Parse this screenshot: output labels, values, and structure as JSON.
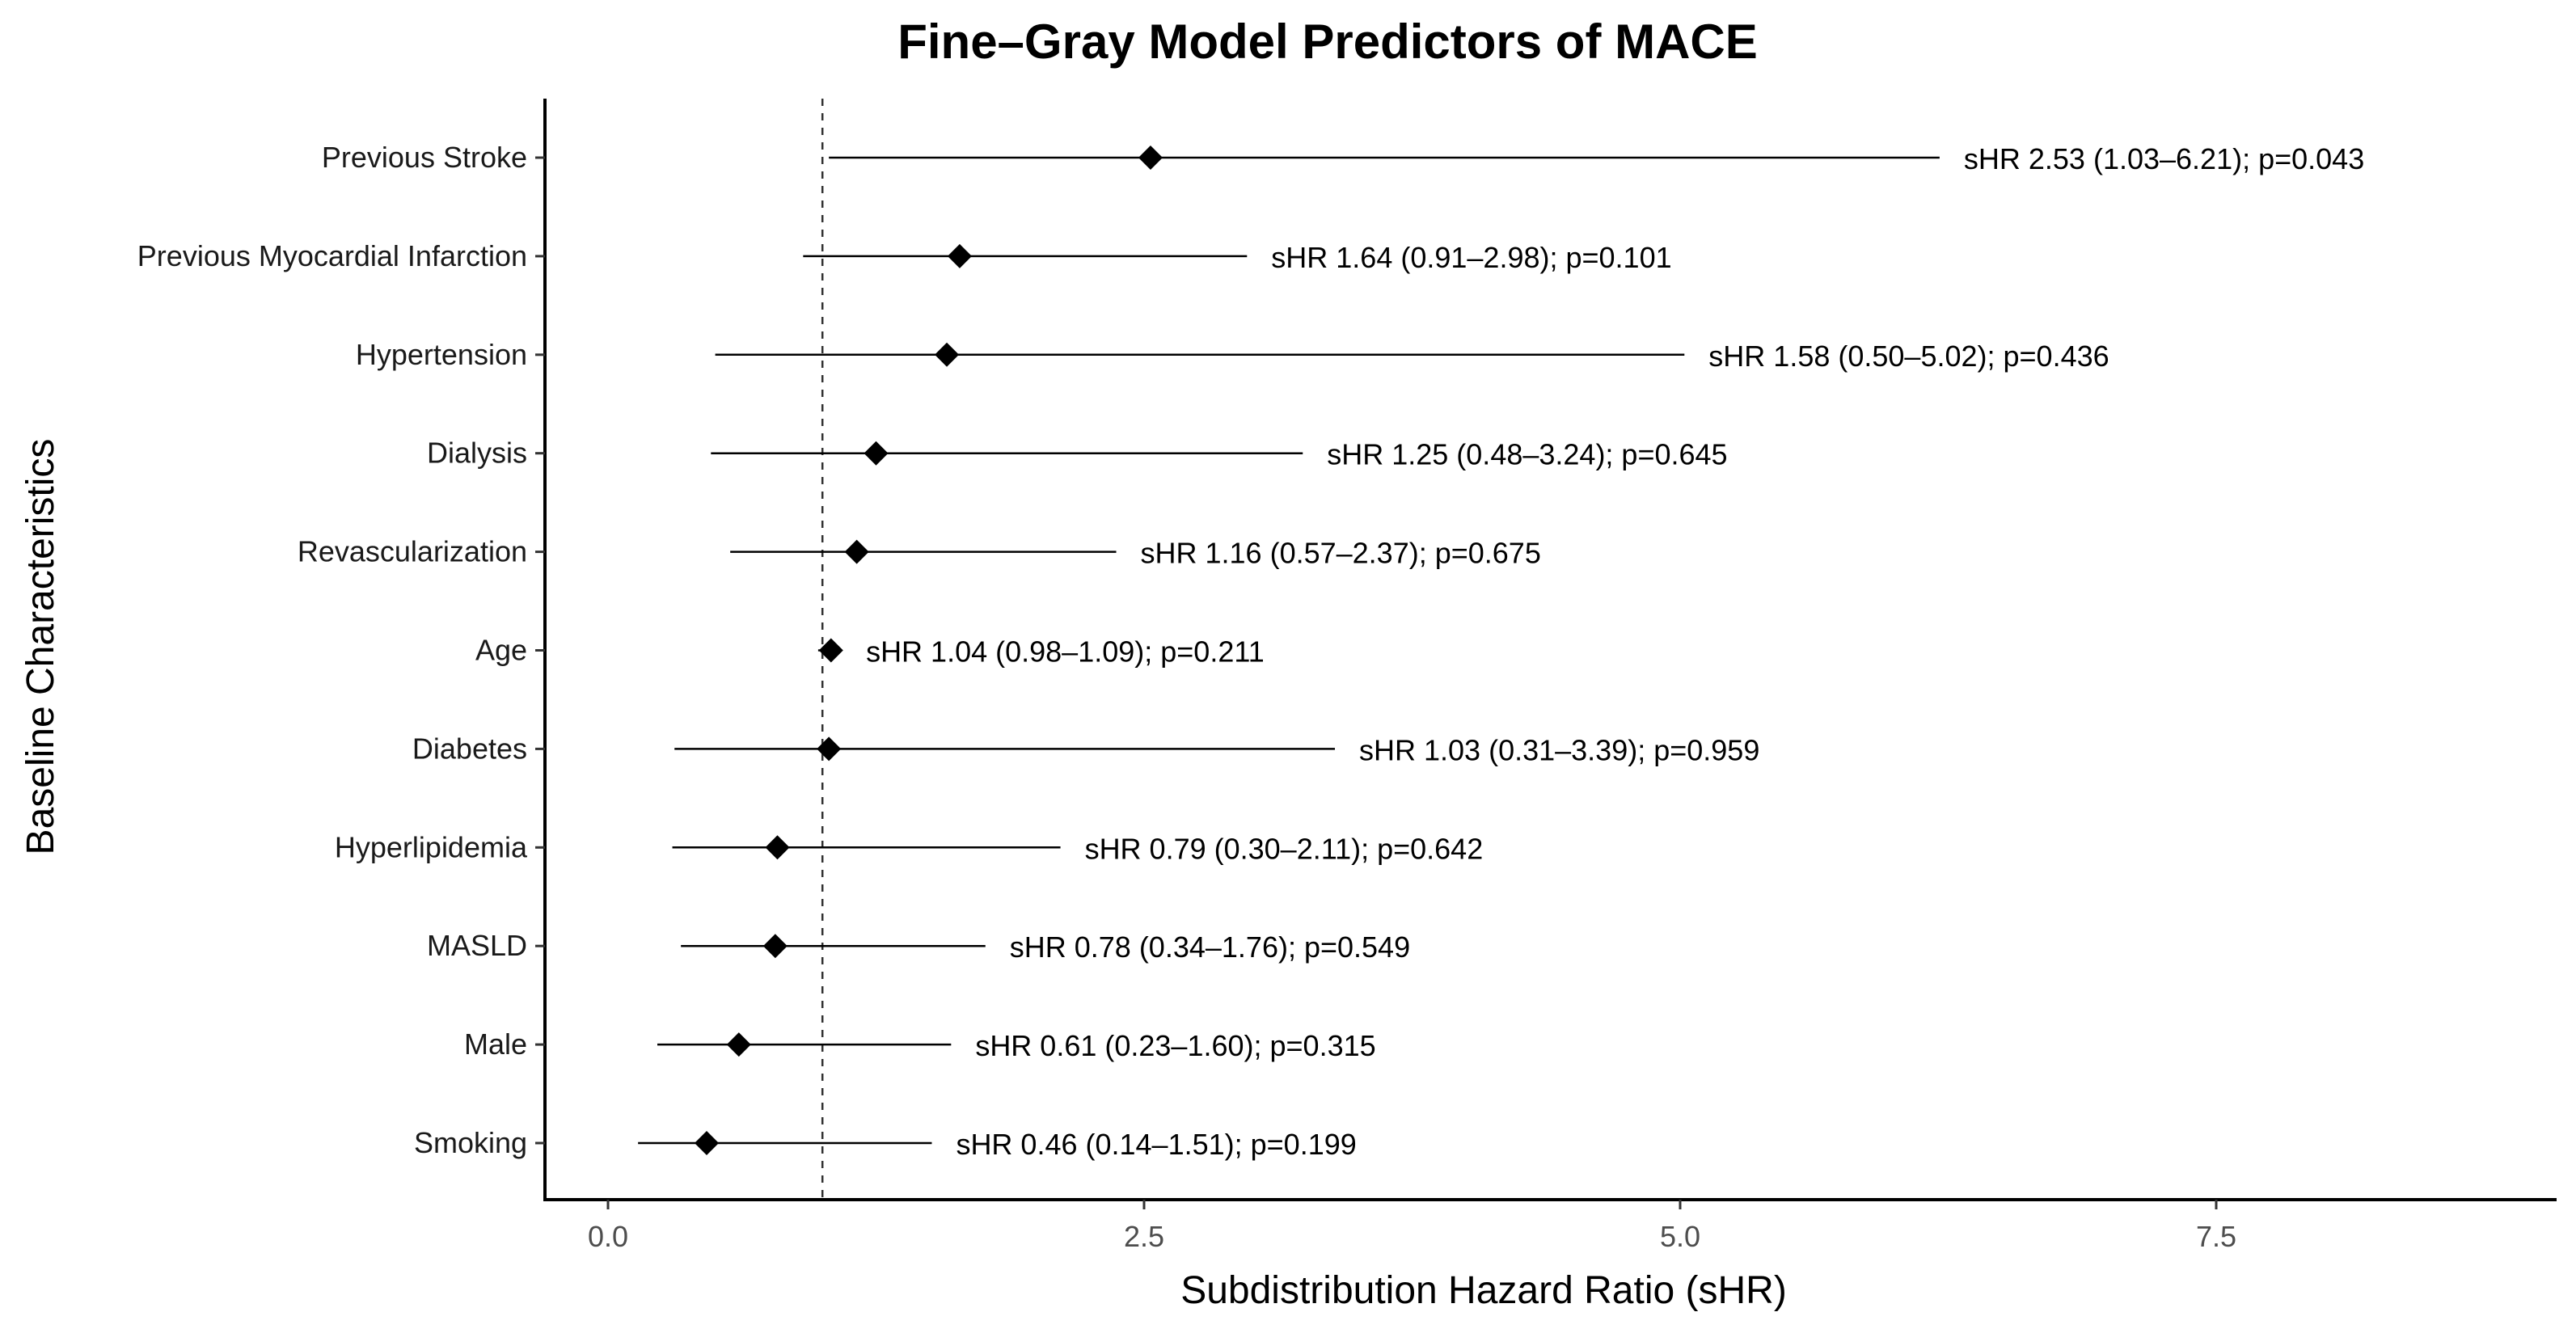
{
  "chart_data": {
    "type": "forest",
    "title": "Fine–Gray Model Predictors of MACE",
    "xlabel": "Subdistribution Hazard Ratio (sHR)",
    "ylabel": "Baseline Characteristics",
    "xlim": [
      -0.6,
      9.2
    ],
    "xticks": [
      0.0,
      2.5,
      5.0,
      7.5
    ],
    "xtick_labels": [
      "0.0",
      "2.5",
      "5.0",
      "7.5"
    ],
    "reference_line": 1.0,
    "rows": [
      {
        "name": "Previous Stroke",
        "shr": 2.53,
        "lower": 1.03,
        "upper": 6.21,
        "p": 0.043,
        "label": "sHR 2.53 (1.03–6.21); p=0.043"
      },
      {
        "name": "Previous Myocardial Infarction",
        "shr": 1.64,
        "lower": 0.91,
        "upper": 2.98,
        "p": 0.101,
        "label": "sHR 1.64 (0.91–2.98); p=0.101"
      },
      {
        "name": "Hypertension",
        "shr": 1.58,
        "lower": 0.5,
        "upper": 5.02,
        "p": 0.436,
        "label": "sHR 1.58 (0.50–5.02); p=0.436"
      },
      {
        "name": "Dialysis",
        "shr": 1.25,
        "lower": 0.48,
        "upper": 3.24,
        "p": 0.645,
        "label": "sHR 1.25 (0.48–3.24); p=0.645"
      },
      {
        "name": "Revascularization",
        "shr": 1.16,
        "lower": 0.57,
        "upper": 2.37,
        "p": 0.675,
        "label": "sHR 1.16 (0.57–2.37); p=0.675"
      },
      {
        "name": "Age",
        "shr": 1.04,
        "lower": 0.98,
        "upper": 1.09,
        "p": 0.211,
        "label": "sHR 1.04 (0.98–1.09); p=0.211"
      },
      {
        "name": "Diabetes",
        "shr": 1.03,
        "lower": 0.31,
        "upper": 3.39,
        "p": 0.959,
        "label": "sHR 1.03 (0.31–3.39); p=0.959"
      },
      {
        "name": "Hyperlipidemia",
        "shr": 0.79,
        "lower": 0.3,
        "upper": 2.11,
        "p": 0.642,
        "label": "sHR 0.79 (0.30–2.11); p=0.642"
      },
      {
        "name": "MASLD",
        "shr": 0.78,
        "lower": 0.34,
        "upper": 1.76,
        "p": 0.549,
        "label": "sHR 0.78 (0.34–1.76); p=0.549"
      },
      {
        "name": "Male",
        "shr": 0.61,
        "lower": 0.23,
        "upper": 1.6,
        "p": 0.315,
        "label": "sHR 0.61 (0.23–1.60); p=0.315"
      },
      {
        "name": "Smoking",
        "shr": 0.46,
        "lower": 0.14,
        "upper": 1.51,
        "p": 0.199,
        "label": "sHR 0.46 (0.14–1.51); p=0.199"
      }
    ]
  }
}
